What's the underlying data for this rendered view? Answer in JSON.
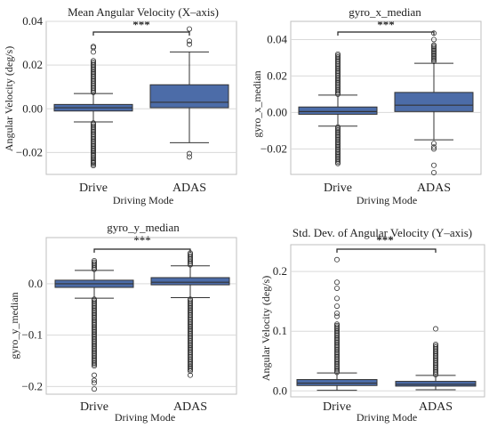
{
  "colors": {
    "box": "#4c6ca8",
    "grid": "#d9d9d9",
    "frame": "#bfbfbf",
    "ink": "#222222"
  },
  "chart_data": [
    {
      "type": "box",
      "title": "Mean Angular Velocity (X–axis)",
      "xlabel": "Driving Mode",
      "ylabel": "Angular Velocity (deg/s)",
      "categories": [
        "Drive",
        "ADAS"
      ],
      "ylim": [
        -0.03,
        0.04
      ],
      "yticks": [
        -0.02,
        0.0,
        0.02,
        0.04
      ],
      "ytick_labels": [
        "−0.02",
        "0.00",
        "0.02",
        "0.04"
      ],
      "significance": "***",
      "boxes": [
        {
          "q1": -0.001,
          "median": 0.0005,
          "q3": 0.002,
          "whisker_low": -0.006,
          "whisker_high": 0.007,
          "outlier_ranges": [
            [
              0.0075,
              0.022
            ],
            [
              -0.026,
              -0.0065
            ]
          ],
          "outliers_extra": [
            0.026,
            0.028,
            0.0285,
            -0.019,
            -0.0245
          ]
        },
        {
          "q1": 0.0005,
          "median": 0.003,
          "q3": 0.011,
          "whisker_low": -0.0155,
          "whisker_high": 0.026,
          "outliers_extra": [
            0.0365,
            0.031,
            0.0295,
            -0.0205,
            -0.022
          ]
        }
      ]
    },
    {
      "type": "box",
      "title": "gyro_x_median",
      "xlabel": "Driving Mode",
      "ylabel": "gyro_x_median",
      "categories": [
        "Drive",
        "ADAS"
      ],
      "ylim": [
        -0.034,
        0.05
      ],
      "yticks": [
        -0.02,
        0.0,
        0.02,
        0.04
      ],
      "ytick_labels": [
        "−0.02",
        "0.00",
        "0.02",
        "0.04"
      ],
      "significance": "***",
      "boxes": [
        {
          "q1": -0.001,
          "median": 0.0005,
          "q3": 0.003,
          "whisker_low": -0.0075,
          "whisker_high": 0.0095,
          "outlier_ranges": [
            [
              0.01,
              0.032
            ],
            [
              -0.028,
              -0.008
            ]
          ]
        },
        {
          "q1": 0.0005,
          "median": 0.004,
          "q3": 0.011,
          "whisker_low": -0.015,
          "whisker_high": 0.027,
          "outlier_ranges": [
            [
              0.028,
              0.037
            ]
          ],
          "outliers_extra": [
            0.0435,
            0.04,
            -0.017,
            -0.019,
            -0.02,
            -0.029,
            -0.033
          ]
        }
      ]
    },
    {
      "type": "box",
      "title": "gyro_y_median",
      "xlabel": "Driving Mode",
      "ylabel": "gyro_y_median",
      "categories": [
        "Drive",
        "ADAS"
      ],
      "ylim": [
        -0.215,
        0.09
      ],
      "yticks": [
        -0.2,
        -0.1,
        0.0
      ],
      "ytick_labels": [
        "−0.2",
        "−0.1",
        "0.0"
      ],
      "significance": "***",
      "boxes": [
        {
          "q1": -0.007,
          "median": 0.0,
          "q3": 0.007,
          "whisker_low": -0.028,
          "whisker_high": 0.026,
          "outlier_ranges": [
            [
              0.028,
              0.045
            ],
            [
              -0.16,
              -0.03
            ]
          ],
          "outliers_extra": [
            -0.178,
            -0.188,
            -0.193,
            -0.205
          ]
        },
        {
          "q1": -0.002,
          "median": 0.003,
          "q3": 0.012,
          "whisker_low": -0.027,
          "whisker_high": 0.035,
          "outlier_ranges": [
            [
              0.037,
              0.06
            ],
            [
              -0.17,
              -0.03
            ]
          ],
          "outliers_extra": [
            -0.178
          ]
        }
      ]
    },
    {
      "type": "box",
      "title": "Std. Dev. of Angular Velocity (Y–axis)",
      "xlabel": "Driving Mode",
      "ylabel": "Angular Velocity (deg/s)",
      "categories": [
        "Drive",
        "ADAS"
      ],
      "ylim": [
        -0.01,
        0.245
      ],
      "yticks": [
        0.0,
        0.1,
        0.2
      ],
      "ytick_labels": [
        "0.0",
        "0.1",
        "0.2"
      ],
      "significance": "***",
      "boxes": [
        {
          "q1": 0.009,
          "median": 0.013,
          "q3": 0.019,
          "whisker_low": 0.001,
          "whisker_high": 0.03,
          "outlier_ranges": [
            [
              0.031,
              0.112
            ]
          ],
          "outliers_extra": [
            0.125,
            0.13,
            0.142,
            0.155,
            0.172,
            0.182,
            0.22
          ]
        },
        {
          "q1": 0.008,
          "median": 0.011,
          "q3": 0.016,
          "whisker_low": 0.002,
          "whisker_high": 0.026,
          "outlier_ranges": [
            [
              0.027,
              0.078
            ]
          ],
          "outliers_extra": [
            0.104
          ]
        }
      ]
    }
  ]
}
